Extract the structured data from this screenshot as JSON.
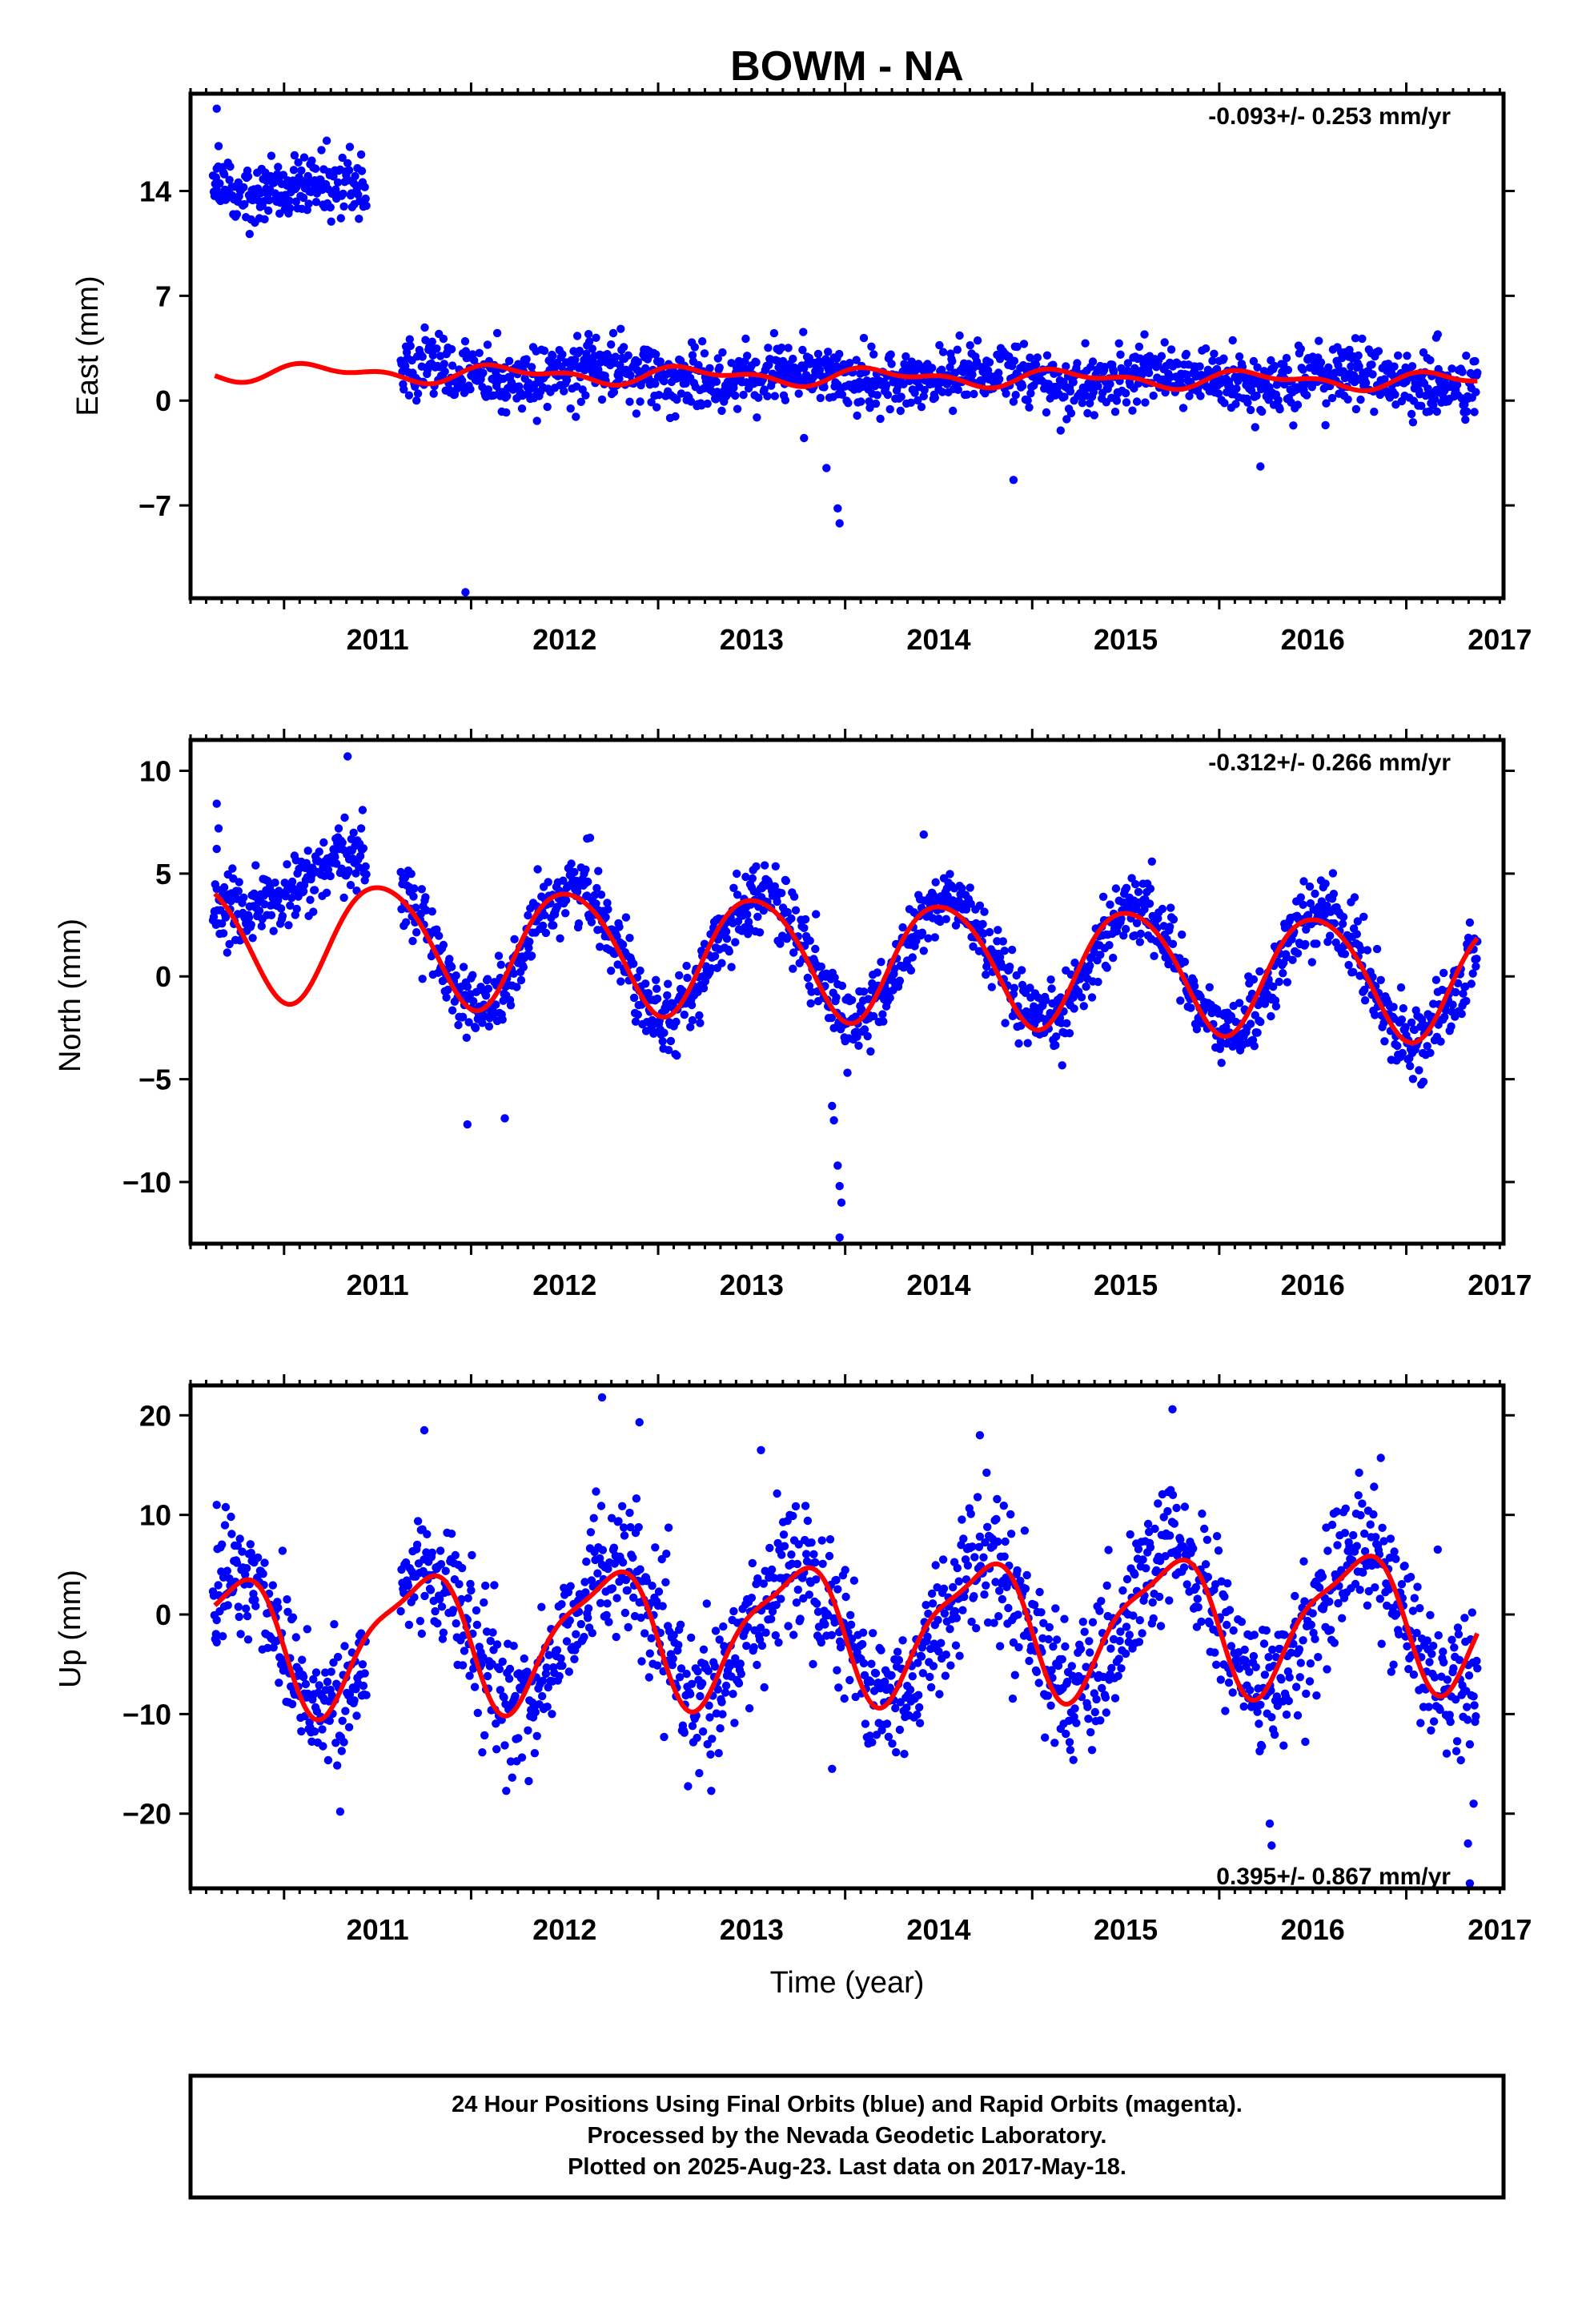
{
  "title": "BOWM - NA",
  "footer": {
    "line1": "24 Hour Positions Using Final Orbits (blue) and Rapid Orbits (magenta).",
    "line2": "Processed by the Nevada Geodetic Laboratory.",
    "line3": "Plotted on 2025-Aug-23. Last data on 2017-May-18."
  },
  "colors": {
    "points": "#0000ff",
    "model": "#ff0000",
    "axes": "#000000",
    "background": "#ffffff"
  },
  "chart_data": [
    {
      "type": "scatter",
      "component": "East",
      "ylabel": "East (mm)",
      "xlabel": "",
      "rate_text": "-0.093+/- 0.253 mm/yr",
      "rate_position": "top-right",
      "xlim": [
        2010.5,
        2017.52
      ],
      "ylim": [
        -13.2,
        20.5
      ],
      "xticks": [
        2011,
        2012,
        2013,
        2014,
        2015,
        2016,
        2017
      ],
      "yticks": [
        14,
        7,
        0,
        -7
      ],
      "grid": false,
      "data_span": [
        2010.62,
        2017.38
      ],
      "gap": [
        2011.44,
        2011.62
      ],
      "offset_before_gap": 14.2,
      "annual_amplitude": 0.5,
      "annual_phase_peak": 2010.72,
      "scatter_sd": 1.2,
      "model_curve": {
        "start": 2010.63,
        "end": 2017.38,
        "constant": 1.6,
        "rate": -0.093,
        "annual_amplitude": 0.45,
        "annual_phase_peak": 2011.2,
        "semiannual_amplitude": 0.3,
        "semiannual_phase_peak": 2011.05
      },
      "outliers": [
        {
          "x": 2010.64,
          "y": 19.5
        },
        {
          "x": 2010.65,
          "y": 17.0
        },
        {
          "x": 2010.64,
          "y": 15.5
        },
        {
          "x": 2011.97,
          "y": -12.8
        },
        {
          "x": 2013.97,
          "y": -8.2
        },
        {
          "x": 2013.96,
          "y": -7.2
        },
        {
          "x": 2013.9,
          "y": -4.5
        },
        {
          "x": 2013.78,
          "y": -2.5
        },
        {
          "x": 2014.9,
          "y": -5.3
        },
        {
          "x": 2016.22,
          "y": -4.4
        },
        {
          "x": 2017.16,
          "y": 4.2
        },
        {
          "x": 2013.62,
          "y": 4.5
        }
      ]
    },
    {
      "type": "scatter",
      "component": "North",
      "ylabel": "North (mm)",
      "xlabel": "",
      "rate_text": "-0.312+/- 0.266 mm/yr",
      "rate_position": "top-right",
      "xlim": [
        2010.5,
        2017.52
      ],
      "ylim": [
        -13.0,
        11.5
      ],
      "xticks": [
        2011,
        2012,
        2013,
        2014,
        2015,
        2016,
        2017
      ],
      "yticks": [
        10,
        5,
        0,
        -5,
        -10
      ],
      "grid": false,
      "data_span": [
        2010.62,
        2017.38
      ],
      "gap": [
        2011.44,
        2011.62
      ],
      "offset_before_gap": 3.5,
      "trend_before_gap": 5.0,
      "annual_amplitude": 3.0,
      "annual_phase_peak": 2011.55,
      "scatter_sd": 1.0,
      "model_curve": {
        "start": 2010.63,
        "end": 2017.38,
        "constant": 0.9,
        "rate": -0.312,
        "annual_amplitude": 2.9,
        "annual_phase_peak": 2011.52,
        "semiannual_amplitude": 0.3,
        "semiannual_phase_peak": 2011.3
      },
      "outliers": [
        {
          "x": 2010.64,
          "y": 8.4
        },
        {
          "x": 2010.65,
          "y": 7.2
        },
        {
          "x": 2010.64,
          "y": 6.2
        },
        {
          "x": 2011.34,
          "y": 10.7
        },
        {
          "x": 2011.98,
          "y": -7.2
        },
        {
          "x": 2012.18,
          "y": -6.9
        },
        {
          "x": 2013.97,
          "y": -12.7
        },
        {
          "x": 2013.98,
          "y": -11.0
        },
        {
          "x": 2013.97,
          "y": -10.2
        },
        {
          "x": 2013.96,
          "y": -9.2
        },
        {
          "x": 2013.94,
          "y": -7.0
        },
        {
          "x": 2013.93,
          "y": -6.3
        },
        {
          "x": 2014.42,
          "y": 6.9
        },
        {
          "x": 2012.62,
          "y": 6.7
        },
        {
          "x": 2013.57,
          "y": 5.4
        }
      ]
    },
    {
      "type": "scatter",
      "component": "Up",
      "ylabel": "Up (mm)",
      "xlabel": "Time (year)",
      "rate_text": "0.395+/- 0.867 mm/yr",
      "rate_position": "bottom-right",
      "xlim": [
        2010.5,
        2017.52
      ],
      "ylim": [
        -27.5,
        23.0
      ],
      "xticks": [
        2011,
        2012,
        2013,
        2014,
        2015,
        2016,
        2017
      ],
      "yticks": [
        20,
        10,
        0,
        -10,
        -20
      ],
      "grid": false,
      "data_span": [
        2010.62,
        2017.38
      ],
      "gap": [
        2011.44,
        2011.62
      ],
      "annual_amplitude": 7.0,
      "annual_phase_peak": 2011.75,
      "scatter_sd": 4.0,
      "model_curve": {
        "start": 2010.63,
        "end": 2017.38,
        "constant": -1.5,
        "rate": 0.395,
        "annual_amplitude": 6.5,
        "annual_phase_peak": 2011.72,
        "semiannual_amplitude": 1.8,
        "semiannual_phase_peak": 2010.9
      },
      "outliers": [
        {
          "x": 2011.3,
          "y": -19.8
        },
        {
          "x": 2012.7,
          "y": 21.8
        },
        {
          "x": 2015.75,
          "y": 20.6
        },
        {
          "x": 2013.93,
          "y": -15.5
        },
        {
          "x": 2016.28,
          "y": -23.2
        },
        {
          "x": 2016.27,
          "y": -21.0
        },
        {
          "x": 2017.34,
          "y": -27.0
        },
        {
          "x": 2017.33,
          "y": -23.0
        },
        {
          "x": 2017.36,
          "y": -19.0
        },
        {
          "x": 2012.9,
          "y": 19.3
        },
        {
          "x": 2014.72,
          "y": 18.0
        },
        {
          "x": 2011.75,
          "y": 18.5
        },
        {
          "x": 2013.55,
          "y": 16.5
        },
        {
          "x": 2010.64,
          "y": 11.0
        },
        {
          "x": 2010.64,
          "y": -2.8
        }
      ]
    }
  ]
}
